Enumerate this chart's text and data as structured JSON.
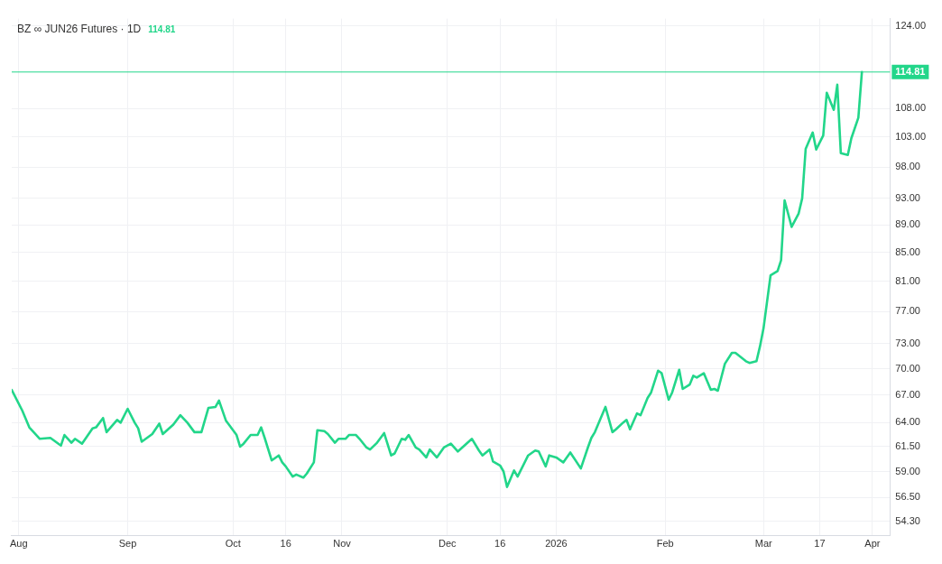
{
  "chart_data": {
    "type": "line",
    "title": "BZ ∞ JUN26 Futures · 1D",
    "subtitle": "114.81",
    "x": [
      "2025-07-30",
      "2025-08-02",
      "2025-08-04",
      "2025-08-07",
      "2025-08-10",
      "2025-08-13",
      "2025-08-14",
      "2025-08-16",
      "2025-08-17",
      "2025-08-19",
      "2025-08-22",
      "2025-08-23",
      "2025-08-25",
      "2025-08-26",
      "2025-08-29",
      "2025-08-30",
      "2025-09-01",
      "2025-09-03",
      "2025-09-04",
      "2025-09-05",
      "2025-09-08",
      "2025-09-10",
      "2025-09-11",
      "2025-09-14",
      "2025-09-16",
      "2025-09-18",
      "2025-09-20",
      "2025-09-22",
      "2025-09-24",
      "2025-09-26",
      "2025-09-27",
      "2025-09-29",
      "2025-10-01",
      "2025-10-02",
      "2025-10-03",
      "2025-10-04",
      "2025-10-06",
      "2025-10-08",
      "2025-10-09",
      "2025-10-10",
      "2025-10-12",
      "2025-10-14",
      "2025-10-15",
      "2025-10-16",
      "2025-10-18",
      "2025-10-19",
      "2025-10-21",
      "2025-10-22",
      "2025-10-24",
      "2025-10-25",
      "2025-10-27",
      "2025-10-28",
      "2025-10-30",
      "2025-10-31",
      "2025-11-02",
      "2025-11-03",
      "2025-11-05",
      "2025-11-06",
      "2025-11-08",
      "2025-11-09",
      "2025-11-11",
      "2025-11-13",
      "2025-11-15",
      "2025-11-16",
      "2025-11-18",
      "2025-11-19",
      "2025-11-20",
      "2025-11-22",
      "2025-11-23",
      "2025-11-25",
      "2025-11-26",
      "2025-11-28",
      "2025-11-30",
      "2025-12-02",
      "2025-12-04",
      "2025-12-08",
      "2025-12-10",
      "2025-12-11",
      "2025-12-13",
      "2025-12-14",
      "2025-12-16",
      "2025-12-17",
      "2025-12-18",
      "2025-12-20",
      "2025-12-21",
      "2025-12-24",
      "2025-12-26",
      "2025-12-27",
      "2025-12-29",
      "2025-12-30",
      "2026-01-01",
      "2026-01-03",
      "2026-01-05",
      "2026-01-08",
      "2026-01-10",
      "2026-01-11",
      "2026-01-12",
      "2026-01-15",
      "2026-01-17",
      "2026-01-18",
      "2026-01-20",
      "2026-01-21",
      "2026-01-22",
      "2026-01-24",
      "2026-01-25",
      "2026-01-27",
      "2026-01-28",
      "2026-01-30",
      "2026-01-31",
      "2026-02-02",
      "2026-02-03",
      "2026-02-05",
      "2026-02-06",
      "2026-02-08",
      "2026-02-09",
      "2026-02-10",
      "2026-02-12",
      "2026-02-14",
      "2026-02-15",
      "2026-02-16",
      "2026-02-18",
      "2026-02-20",
      "2026-02-21",
      "2026-02-24",
      "2026-02-25",
      "2026-02-27",
      "2026-02-28",
      "2026-03-01",
      "2026-03-03",
      "2026-03-05",
      "2026-03-06",
      "2026-03-07",
      "2026-03-09",
      "2026-03-11",
      "2026-03-12",
      "2026-03-13",
      "2026-03-15",
      "2026-03-16",
      "2026-03-18",
      "2026-03-19",
      "2026-03-21",
      "2026-03-22",
      "2026-03-23",
      "2026-03-25",
      "2026-03-26",
      "2026-03-28",
      "2026-03-29"
    ],
    "series": [
      {
        "color": "#22d68a",
        "values": [
          67.6,
          65.3,
          63.5,
          62.3,
          62.4,
          61.6,
          62.7,
          61.9,
          62.3,
          61.8,
          63.4,
          63.5,
          64.5,
          63.0,
          64.3,
          64.0,
          65.5,
          64.0,
          63.4,
          62.0,
          62.8,
          63.9,
          62.8,
          63.8,
          64.8,
          64.0,
          63.0,
          63.0,
          65.6,
          65.7,
          66.4,
          64.2,
          63.2,
          62.7,
          61.5,
          61.8,
          62.7,
          62.7,
          63.5,
          62.4,
          60.1,
          60.6,
          59.9,
          59.5,
          58.5,
          58.7,
          58.4,
          58.8,
          59.9,
          63.2,
          63.1,
          62.8,
          61.9,
          62.3,
          62.3,
          62.7,
          62.7,
          62.3,
          61.4,
          61.2,
          61.9,
          62.9,
          60.6,
          60.8,
          62.3,
          62.2,
          62.7,
          61.4,
          61.2,
          60.4,
          61.2,
          60.4,
          61.4,
          61.8,
          61.0,
          62.3,
          61.1,
          60.6,
          61.2,
          60.0,
          59.6,
          59.0,
          57.5,
          59.1,
          58.5,
          60.6,
          61.1,
          61.0,
          59.5,
          60.6,
          60.4,
          59.9,
          60.9,
          59.3,
          61.4,
          62.4,
          63.0,
          65.7,
          63.0,
          63.3,
          64.0,
          64.3,
          63.3,
          65.0,
          64.8,
          66.7,
          67.3,
          69.8,
          69.5,
          66.5,
          67.3,
          69.9,
          67.7,
          68.2,
          69.2,
          69.0,
          69.5,
          67.6,
          67.7,
          67.5,
          70.6,
          71.9,
          71.9,
          70.9,
          70.7,
          70.9,
          72.7,
          74.9,
          81.8,
          82.4,
          83.9,
          92.7,
          88.7,
          90.7,
          93.0,
          101.0,
          103.8,
          100.9,
          103.3,
          110.9,
          107.8,
          112.4,
          100.3,
          100.0,
          102.8,
          106.4,
          114.81
        ]
      }
    ],
    "xlim": [
      "2025-07-30",
      "2026-04-06"
    ],
    "xticks": [
      {
        "value": "2025-08-01",
        "label": "Aug"
      },
      {
        "value": "2025-09-01",
        "label": "Sep"
      },
      {
        "value": "2025-10-01",
        "label": "Oct"
      },
      {
        "value": "2025-10-16",
        "label": "16"
      },
      {
        "value": "2025-11-01",
        "label": "Nov"
      },
      {
        "value": "2025-12-01",
        "label": "Dec"
      },
      {
        "value": "2025-12-16",
        "label": "16"
      },
      {
        "value": "2026-01-01",
        "label": "2026"
      },
      {
        "value": "2026-02-01",
        "label": "Feb"
      },
      {
        "value": "2026-03-01",
        "label": "Mar"
      },
      {
        "value": "2026-03-17",
        "label": "17"
      },
      {
        "value": "2026-04-01",
        "label": "Apr"
      }
    ],
    "ylim": [
      53,
      125.5
    ],
    "log": "y",
    "yticks": [
      {
        "value": 54.3,
        "label": "54.30"
      },
      {
        "value": 56.5,
        "label": "56.50"
      },
      {
        "value": 59,
        "label": "59.00"
      },
      {
        "value": 61.5,
        "label": "61.50"
      },
      {
        "value": 64,
        "label": "64.00"
      },
      {
        "value": 67,
        "label": "67.00"
      },
      {
        "value": 70,
        "label": "70.00"
      },
      {
        "value": 73,
        "label": "73.00"
      },
      {
        "value": 77,
        "label": "77.00"
      },
      {
        "value": 81,
        "label": "81.00"
      },
      {
        "value": 85,
        "label": "85.00"
      },
      {
        "value": 89,
        "label": "89.00"
      },
      {
        "value": 93,
        "label": "93.00"
      },
      {
        "value": 98,
        "label": "98.00"
      },
      {
        "value": 103,
        "label": "103.00"
      },
      {
        "value": 108,
        "label": "108.00"
      },
      {
        "value": 124,
        "label": "124.00"
      }
    ],
    "ref_lines": [
      {
        "axis": "y",
        "value": 114.81,
        "label": "114.81",
        "color": "#22d68a"
      }
    ],
    "grid": true,
    "legend": false,
    "marker": "none",
    "line_style": "solid"
  }
}
